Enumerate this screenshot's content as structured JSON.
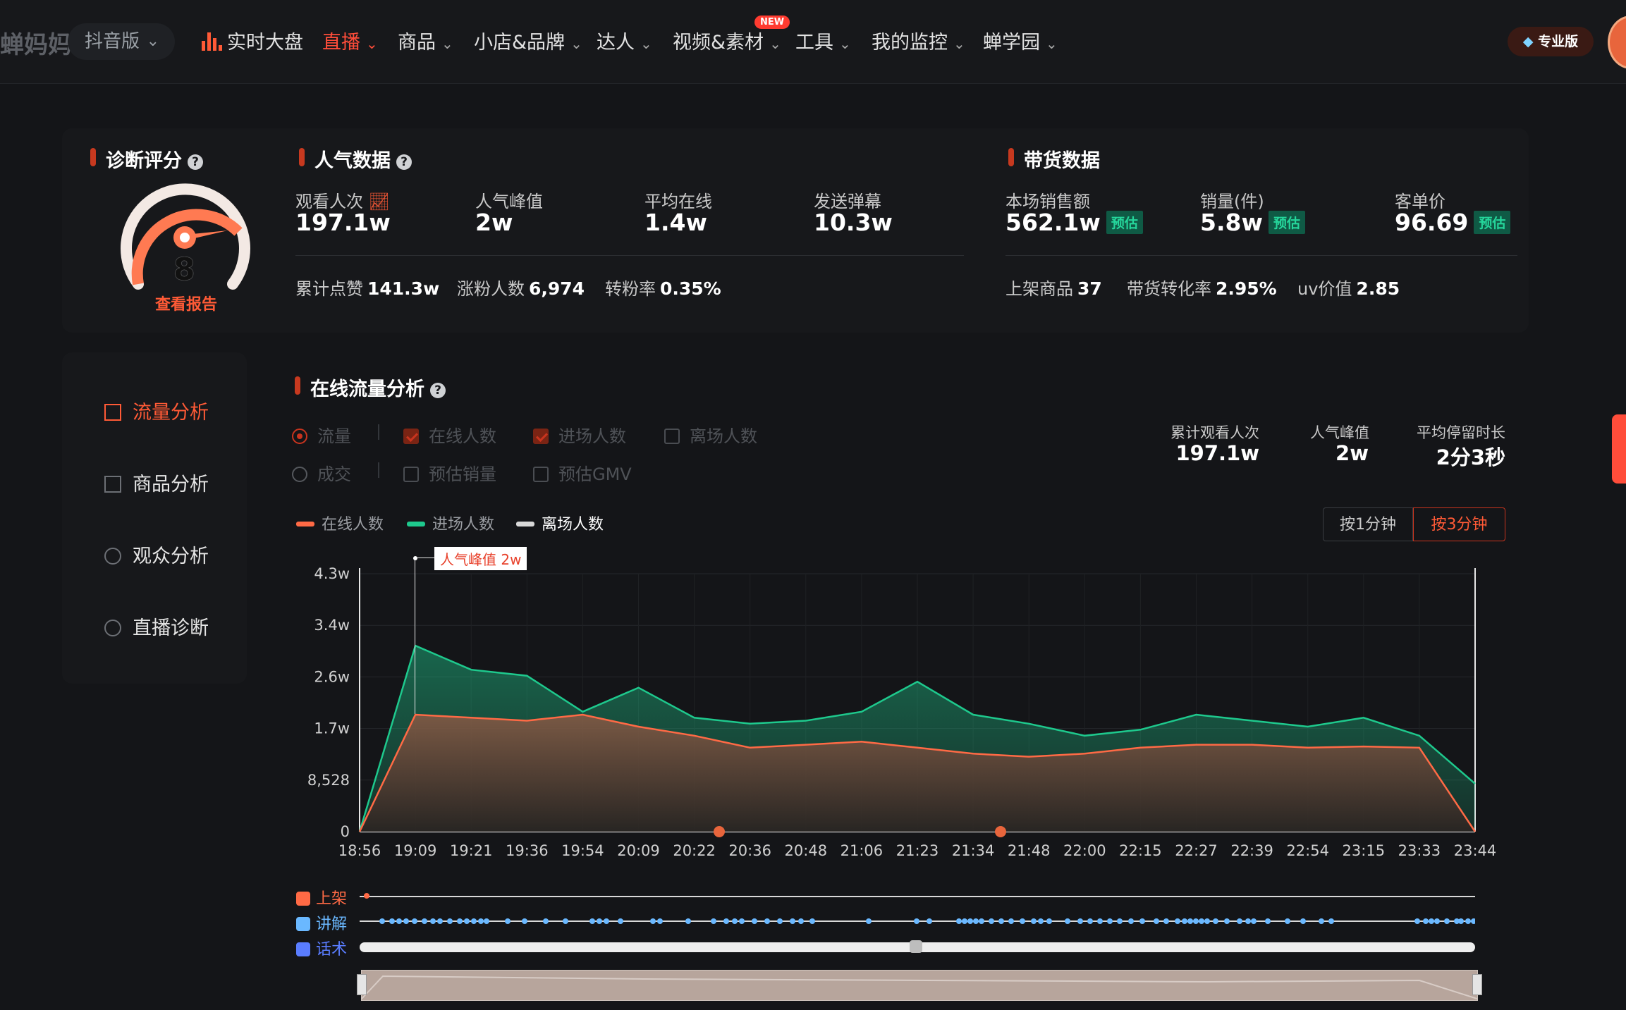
{
  "header": {
    "brand": "蝉妈妈",
    "version": "抖音版",
    "nav": [
      {
        "label": "实时大盘",
        "icon": "bar-chart-icon",
        "chev": false
      },
      {
        "label": "直播",
        "chev": true,
        "active": true
      },
      {
        "label": "商品",
        "chev": true
      },
      {
        "label": "小店&品牌",
        "chev": true
      },
      {
        "label": "达人",
        "chev": true
      },
      {
        "label": "视频&素材",
        "chev": true,
        "badge": "NEW"
      },
      {
        "label": "工具",
        "chev": true
      },
      {
        "label": "我的监控",
        "chev": true
      },
      {
        "label": "蝉学园",
        "chev": true
      }
    ],
    "pro_label": "专业版"
  },
  "diagnosis": {
    "title": "诊断评分",
    "score": "8",
    "report_link": "查看报告",
    "score_fraction": 0.8
  },
  "popularity": {
    "title": "人气数据",
    "kpis": [
      {
        "label": "观看人次",
        "value": "197.1w"
      },
      {
        "label": "人气峰值",
        "value": "2w"
      },
      {
        "label": "平均在线",
        "value": "1.4w"
      },
      {
        "label": "发送弹幕",
        "value": "10.3w"
      }
    ],
    "stats": [
      {
        "label": "累计点赞",
        "value": "141.3w"
      },
      {
        "label": "涨粉人数",
        "value": "6,974"
      },
      {
        "label": "转粉率",
        "value": "0.35%"
      }
    ]
  },
  "sales": {
    "title": "带货数据",
    "kpis": [
      {
        "label": "本场销售额",
        "value": "562.1w",
        "tag": "预估"
      },
      {
        "label": "销量(件)",
        "value": "5.8w",
        "tag": "预估"
      },
      {
        "label": "客单价",
        "value": "96.69",
        "tag": "预估"
      }
    ],
    "stats": [
      {
        "label": "上架商品",
        "value": "37"
      },
      {
        "label": "带货转化率",
        "value": "2.95%"
      },
      {
        "label": "uv价值",
        "value": "2.85"
      }
    ]
  },
  "sidebar": {
    "items": [
      {
        "label": "流量分析",
        "active": true
      },
      {
        "label": "商品分析"
      },
      {
        "label": "观众分析"
      },
      {
        "label": "直播诊断"
      }
    ]
  },
  "traffic": {
    "title": "在线流量分析",
    "filters_row1": [
      {
        "label": "流量",
        "type": "radio",
        "on": true
      },
      {
        "label": "在线人数",
        "type": "check",
        "on": true
      },
      {
        "label": "进场人数",
        "type": "check",
        "on": true
      },
      {
        "label": "离场人数",
        "type": "check",
        "on": false
      }
    ],
    "filters_row2": [
      {
        "label": "成交",
        "type": "radio",
        "on": false
      },
      {
        "label": "预估销量",
        "type": "check",
        "on": false
      },
      {
        "label": "预估GMV",
        "type": "check",
        "on": false
      }
    ],
    "summary": [
      {
        "label": "累计观看人次",
        "value": "197.1w"
      },
      {
        "label": "人气峰值",
        "value": "2w"
      },
      {
        "label": "平均停留时长",
        "value": "2分3秒"
      }
    ],
    "legend": [
      {
        "label": "在线人数",
        "color": "#ff6a45"
      },
      {
        "label": "进场人数",
        "color": "#1ec98d"
      },
      {
        "label": "离场人数",
        "color": "#d8d8d8"
      }
    ],
    "toggles": [
      {
        "label": "按1分钟",
        "on": false
      },
      {
        "label": "按3分钟",
        "on": true
      }
    ],
    "peak_label": "人气峰值 2w",
    "timeline_rows": [
      {
        "label": "上架",
        "color": "#ff6a45"
      },
      {
        "label": "讲解",
        "color": "#6ab8ff"
      },
      {
        "label": "话术",
        "color": "#5a7dff"
      }
    ]
  },
  "chart_data": {
    "type": "area",
    "x": [
      "18:56",
      "19:09",
      "19:21",
      "19:36",
      "19:54",
      "20:09",
      "20:22",
      "20:36",
      "20:48",
      "21:06",
      "21:23",
      "21:34",
      "21:48",
      "22:00",
      "22:15",
      "22:27",
      "22:39",
      "22:54",
      "23:15",
      "23:33",
      "23:44"
    ],
    "y_ticks": [
      "0",
      "8,528",
      "1.7w",
      "2.6w",
      "3.4w",
      "4.3w"
    ],
    "ylim": [
      0,
      43000
    ],
    "series": [
      {
        "name": "在线人数",
        "values": [
          0,
          19500,
          19000,
          18500,
          19500,
          17500,
          16000,
          14000,
          14500,
          15000,
          14000,
          13000,
          12500,
          13000,
          14000,
          14500,
          14500,
          14000,
          14200,
          14000,
          0
        ]
      },
      {
        "name": "进场人数",
        "values": [
          0,
          31000,
          27000,
          26000,
          20000,
          24000,
          19000,
          18000,
          18500,
          20000,
          25000,
          19500,
          18000,
          16000,
          17000,
          19500,
          18500,
          17500,
          19000,
          16000,
          8000
        ]
      }
    ]
  }
}
